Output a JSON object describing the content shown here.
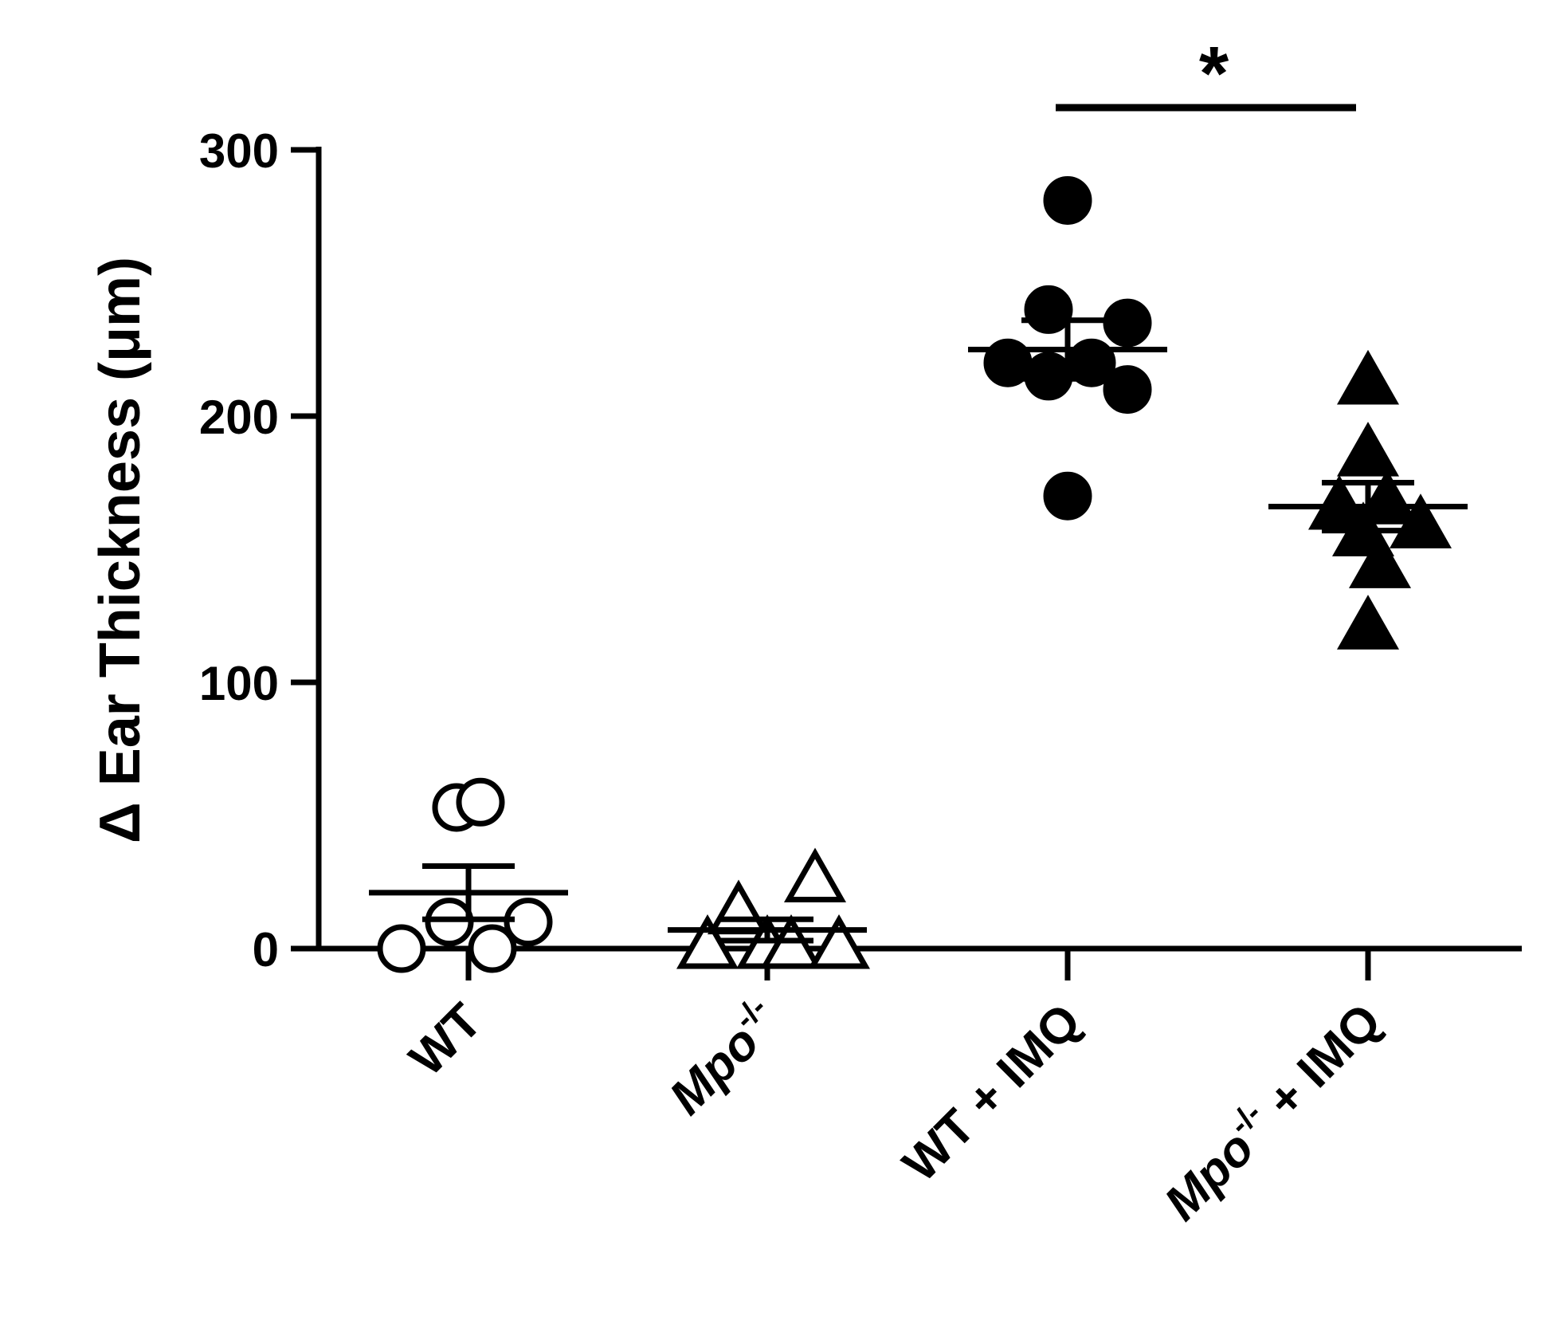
{
  "chart_data": {
    "type": "scatter",
    "ylabel": "Δ Ear Thickness (μm)",
    "ylim": [
      0,
      300
    ],
    "yticks": [
      "0",
      "100",
      "200",
      "300"
    ],
    "categories": [
      {
        "label": "WT",
        "italic_prefix": "",
        "superscript": "",
        "rest": "WT"
      },
      {
        "label": "Mpo-/-",
        "italic_prefix": "Mpo",
        "superscript": "-/-",
        "rest": ""
      },
      {
        "label": "WT + IMQ",
        "italic_prefix": "",
        "superscript": "",
        "rest": "WT + IMQ"
      },
      {
        "label": "Mpo-/- + IMQ",
        "italic_prefix": "Mpo",
        "superscript": "-/-",
        "rest": " + IMQ"
      }
    ],
    "series": [
      {
        "category": "WT",
        "marker": "circle",
        "filled": false,
        "points": [
          {
            "x": -0.28,
            "y": 0
          },
          {
            "x": -0.08,
            "y": 10
          },
          {
            "x": 0.1,
            "y": 0
          },
          {
            "x": 0.25,
            "y": 10
          },
          {
            "x": -0.05,
            "y": 53
          },
          {
            "x": 0.05,
            "y": 55
          }
        ],
        "mean": 21,
        "sem": 10
      },
      {
        "category": "Mpo-/-",
        "marker": "triangle",
        "filled": false,
        "points": [
          {
            "x": -0.25,
            "y": 0
          },
          {
            "x": -0.12,
            "y": 13
          },
          {
            "x": 0.0,
            "y": 0
          },
          {
            "x": 0.1,
            "y": 0
          },
          {
            "x": 0.2,
            "y": 25
          },
          {
            "x": 0.3,
            "y": 0
          }
        ],
        "mean": 7,
        "sem": 4
      },
      {
        "category": "WT + IMQ",
        "marker": "circle",
        "filled": true,
        "points": [
          {
            "x": 0.0,
            "y": 281
          },
          {
            "x": -0.08,
            "y": 240
          },
          {
            "x": 0.25,
            "y": 235
          },
          {
            "x": -0.25,
            "y": 220
          },
          {
            "x": -0.08,
            "y": 215
          },
          {
            "x": 0.1,
            "y": 220
          },
          {
            "x": 0.25,
            "y": 210
          },
          {
            "x": 0.0,
            "y": 170
          }
        ],
        "mean": 225,
        "sem": 11
      },
      {
        "category": "Mpo-/- + IMQ",
        "marker": "triangle",
        "filled": true,
        "points": [
          {
            "x": 0.0,
            "y": 212
          },
          {
            "x": -0.12,
            "y": 165
          },
          {
            "x": 0.0,
            "y": 185
          },
          {
            "x": 0.08,
            "y": 167
          },
          {
            "x": 0.22,
            "y": 158
          },
          {
            "x": -0.02,
            "y": 155
          },
          {
            "x": 0.05,
            "y": 143
          },
          {
            "x": 0.0,
            "y": 120
          }
        ],
        "mean": 166,
        "sem": 9
      }
    ],
    "significance": [
      {
        "from": "WT + IMQ",
        "to": "Mpo-/- + IMQ",
        "label": "*"
      }
    ]
  }
}
